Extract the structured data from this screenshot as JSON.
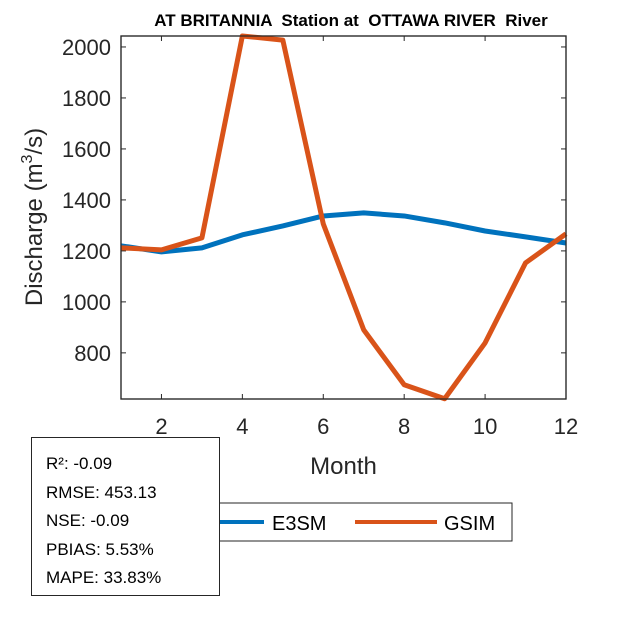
{
  "chart_data": {
    "type": "line",
    "title": "AT BRITANNIA  Station at  OTTAWA RIVER  River",
    "xlabel": "Month",
    "ylabel": "Discharge (m",
    "ylabel_sup": "3",
    "ylabel_tail": "/s)",
    "xlim": [
      1,
      12
    ],
    "ylim": [
      619,
      2043
    ],
    "xticks": [
      2,
      4,
      6,
      8,
      10,
      12
    ],
    "yticks": [
      800,
      1000,
      1200,
      1400,
      1600,
      1800,
      2000
    ],
    "grid": false,
    "x": [
      1,
      2,
      3,
      4,
      5,
      6,
      7,
      8,
      9,
      10,
      11,
      12
    ],
    "series": [
      {
        "name": "E3SM",
        "color": "#0072BD",
        "values": [
          1220,
          1196,
          1212,
          1263,
          1298,
          1337,
          1349,
          1337,
          1310,
          1278,
          1255,
          1231
        ]
      },
      {
        "name": "GSIM",
        "color": "#D95319",
        "values": [
          1212,
          1204,
          1251,
          2043,
          2027,
          1306,
          890,
          675,
          620,
          839,
          1153,
          1267
        ]
      }
    ],
    "legend_position": "bottom"
  },
  "stats": [
    "R²: -0.09",
    "RMSE: 453.13",
    "NSE: -0.09",
    "PBIAS: 5.53%",
    "MAPE: 33.83%"
  ]
}
